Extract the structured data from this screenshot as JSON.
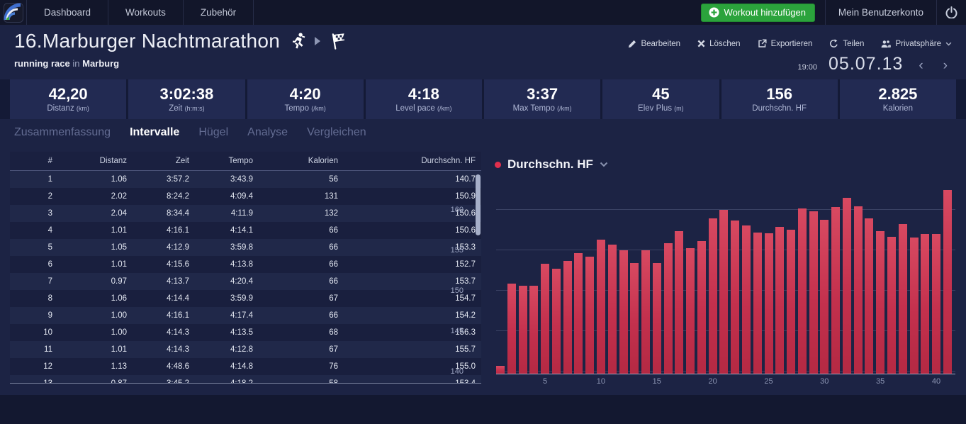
{
  "nav": {
    "items": [
      "Dashboard",
      "Workouts",
      "Zubehör"
    ],
    "add_workout_label": "Workout hinzufügen",
    "account_label": "Mein Benutzerkonto"
  },
  "header": {
    "title": "16.Marburger Nachtmarathon",
    "activity_type": "running race",
    "location_prefix": "in",
    "location": "Marburg",
    "actions": [
      {
        "name": "edit-button",
        "icon": "pencil-icon",
        "label": "Bearbeiten"
      },
      {
        "name": "delete-button",
        "icon": "x-icon",
        "label": "Löschen"
      },
      {
        "name": "export-button",
        "icon": "export-icon",
        "label": "Exportieren"
      },
      {
        "name": "share-button",
        "icon": "share-icon",
        "label": "Teilen"
      },
      {
        "name": "privacy-button",
        "icon": "people-icon",
        "label": "Privatsphäre",
        "chevron": true
      }
    ],
    "time": "19:00",
    "date": "05.07.13"
  },
  "stats": [
    {
      "value": "42,20",
      "label": "Distanz",
      "unit": "(km)"
    },
    {
      "value": "3:02:38",
      "label": "Zeit",
      "unit": "(h:m:s)"
    },
    {
      "value": "4:20",
      "label": "Tempo",
      "unit": "(/km)"
    },
    {
      "value": "4:18",
      "label": "Level pace",
      "unit": "(/km)"
    },
    {
      "value": "3:37",
      "label": "Max Tempo",
      "unit": "(/km)"
    },
    {
      "value": "45",
      "label": "Elev Plus",
      "unit": "(m)"
    },
    {
      "value": "156",
      "label": "Durchschn. HF",
      "unit": ""
    },
    {
      "value": "2.825",
      "label": "Kalorien",
      "unit": ""
    }
  ],
  "tabs": [
    {
      "label": "Zusammenfassung",
      "active": false
    },
    {
      "label": "Intervalle",
      "active": true
    },
    {
      "label": "Hügel",
      "active": false
    },
    {
      "label": "Analyse",
      "active": false
    },
    {
      "label": "Vergleichen",
      "active": false
    }
  ],
  "table": {
    "columns": [
      "#",
      "Distanz",
      "Zeit",
      "Tempo",
      "Kalorien",
      "Durchschn. HF"
    ],
    "rows": [
      [
        "1",
        "1.06",
        "3:57.2",
        "3:43.9",
        "56",
        "140.7"
      ],
      [
        "2",
        "2.02",
        "8:24.2",
        "4:09.4",
        "131",
        "150.9"
      ],
      [
        "3",
        "2.04",
        "8:34.4",
        "4:11.9",
        "132",
        "150.6"
      ],
      [
        "4",
        "1.01",
        "4:16.1",
        "4:14.1",
        "66",
        "150.6"
      ],
      [
        "5",
        "1.05",
        "4:12.9",
        "3:59.8",
        "66",
        "153.3"
      ],
      [
        "6",
        "1.01",
        "4:15.6",
        "4:13.8",
        "66",
        "152.7"
      ],
      [
        "7",
        "0.97",
        "4:13.7",
        "4:20.4",
        "66",
        "153.7"
      ],
      [
        "8",
        "1.06",
        "4:14.4",
        "3:59.9",
        "67",
        "154.7"
      ],
      [
        "9",
        "1.00",
        "4:16.1",
        "4:17.4",
        "66",
        "154.2"
      ],
      [
        "10",
        "1.00",
        "4:14.3",
        "4:13.5",
        "68",
        "156.3"
      ],
      [
        "11",
        "1.01",
        "4:14.3",
        "4:12.8",
        "67",
        "155.7"
      ],
      [
        "12",
        "1.13",
        "4:48.6",
        "4:14.8",
        "76",
        "155.0"
      ],
      [
        "13",
        "0.87",
        "3:45.2",
        "4:18.2",
        "58",
        "153.4"
      ]
    ]
  },
  "chart_data": {
    "type": "bar",
    "title": "Durchschn. HF",
    "legend_dot_color": "#e12f4d",
    "bar_color": "#c3304d",
    "x": [
      1,
      2,
      3,
      4,
      5,
      6,
      7,
      8,
      9,
      10,
      11,
      12,
      13,
      14,
      15,
      16,
      17,
      18,
      19,
      20,
      21,
      22,
      23,
      24,
      25,
      26,
      27,
      28,
      29,
      30,
      31,
      32,
      33,
      34,
      35,
      36,
      37,
      38,
      39,
      40,
      41
    ],
    "values": [
      140.7,
      150.9,
      150.6,
      150.6,
      153.3,
      152.7,
      153.7,
      154.7,
      154.2,
      156.3,
      155.7,
      155.0,
      153.4,
      155.0,
      153.4,
      155.9,
      157.4,
      155.3,
      156.2,
      159.0,
      160.0,
      158.7,
      158.1,
      157.2,
      157.1,
      157.9,
      157.6,
      160.2,
      159.9,
      158.8,
      160.4,
      161.5,
      160.5,
      159.0,
      157.4,
      156.7,
      158.3,
      156.6,
      157.0,
      157.0,
      162.5
    ],
    "xlabel": "",
    "ylabel": "",
    "yticks": [
      140,
      145,
      150,
      155,
      160
    ],
    "xticks": [
      5,
      10,
      15,
      20,
      25,
      30,
      35,
      40
    ],
    "ylim": [
      139.6,
      163.2
    ],
    "grid": true,
    "legend_position": "top-left"
  }
}
